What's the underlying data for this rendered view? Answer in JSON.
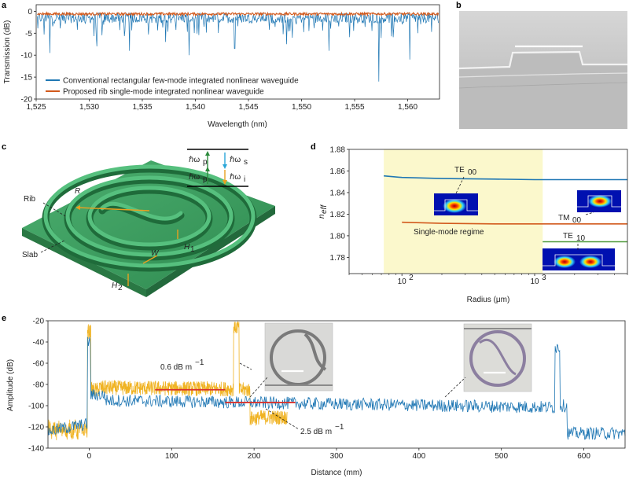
{
  "panels": {
    "a": "a",
    "b": "b",
    "c": "c",
    "d": "d",
    "e": "e"
  },
  "colors": {
    "blue": "#1f77b4",
    "orange": "#d2591c",
    "yellow_trace": "#f0b323",
    "green_curve": "#4f9a3a",
    "red_marker": "#d8322d",
    "highlight": "#fbf8cc",
    "slab": "#3a9a5c"
  },
  "chart_data": [
    {
      "id": "a",
      "type": "line",
      "xlabel": "Wavelength (nm)",
      "ylabel": "Transmission (dB)",
      "xlim": [
        1525,
        1563
      ],
      "ylim": [
        -20,
        1.5
      ],
      "xticks": [
        "1,525",
        "1,530",
        "1,535",
        "1,540",
        "1,545",
        "1,550",
        "1,555",
        "1,560"
      ],
      "xtick_values": [
        1525,
        1530,
        1535,
        1540,
        1545,
        1550,
        1555,
        1560
      ],
      "yticks": [
        "0",
        "-5",
        "-10",
        "-15",
        "-20"
      ],
      "ytick_values": [
        0,
        -5,
        -10,
        -15,
        -20
      ],
      "series": [
        {
          "name": "Conventional rectangular few-mode integrated nonlinear waveguide",
          "color": "#1f77b4",
          "baseline": -1.5,
          "noise": 1.2,
          "dips": [
            [
              1526.3,
              -9.5
            ],
            [
              1530.7,
              -8
            ],
            [
              1533.8,
              -9
            ],
            [
              1537.2,
              -7
            ],
            [
              1539.4,
              -10
            ],
            [
              1543.7,
              -8.5
            ],
            [
              1548.6,
              -7.5
            ],
            [
              1552.6,
              -9
            ],
            [
              1557.3,
              -16
            ],
            [
              1560.2,
              -11
            ]
          ]
        },
        {
          "name": "Proposed rib single-mode integrated nonlinear waveguide",
          "color": "#d2591c",
          "baseline": -0.6,
          "noise": 0.3,
          "dips": []
        }
      ]
    },
    {
      "id": "d",
      "type": "line",
      "xlabel": "Radius (μm)",
      "ylabel": "n",
      "ylabel_sub": "eff",
      "xscale": "log",
      "xlim": [
        40,
        5000
      ],
      "ylim": [
        1.765,
        1.88
      ],
      "xticks": [
        "10",
        "10"
      ],
      "xtick_sup": [
        "2",
        "3"
      ],
      "xtick_values": [
        100,
        1000
      ],
      "yticks": [
        "1.88",
        "1.86",
        "1.84",
        "1.82",
        "1.80",
        "1.78"
      ],
      "ytick_values": [
        1.88,
        1.86,
        1.84,
        1.82,
        1.8,
        1.78
      ],
      "region": {
        "label": "Single-mode regime",
        "from": 73,
        "to": 1150
      },
      "series": [
        {
          "name": "TE",
          "sub": "00",
          "color": "#1f77b4",
          "x": [
            73,
            100,
            200,
            500,
            1000,
            2000,
            5000
          ],
          "y": [
            1.8555,
            1.854,
            1.853,
            1.8525,
            1.852,
            1.852,
            1.852
          ]
        },
        {
          "name": "TM",
          "sub": "00",
          "color": "#d2591c",
          "x": [
            100,
            200,
            500,
            1000,
            2000,
            5000
          ],
          "y": [
            1.8125,
            1.8115,
            1.811,
            1.811,
            1.811,
            1.811
          ]
        },
        {
          "name": "TE",
          "sub": "10",
          "color": "#4f9a3a",
          "x": [
            1150,
            2000,
            5000
          ],
          "y": [
            1.7945,
            1.7945,
            1.7945
          ]
        }
      ]
    },
    {
      "id": "e",
      "type": "line",
      "xlabel": "Distance (mm)",
      "ylabel": "Amplitude (dB)",
      "xlim": [
        -50,
        650
      ],
      "ylim": [
        -140,
        -20
      ],
      "xticks": [
        "0",
        "100",
        "200",
        "300",
        "400",
        "500",
        "600"
      ],
      "xtick_values": [
        0,
        100,
        200,
        300,
        400,
        500,
        600
      ],
      "yticks": [
        "-20",
        "-40",
        "-60",
        "-80",
        "-100",
        "-120",
        "-140"
      ],
      "ytick_values": [
        -20,
        -40,
        -60,
        -80,
        -100,
        -120,
        -140
      ],
      "annotations": [
        {
          "text": "0.6 dB m",
          "sup": "−1",
          "from": 80,
          "to": 165,
          "level": -85
        },
        {
          "text": "2.5 dB m",
          "sup": "−1",
          "from": 165,
          "to": 250,
          "level": -97
        }
      ],
      "series": [
        {
          "name": "ring-short",
          "color": "#f0b323",
          "x_end": 240
        },
        {
          "name": "ring-long",
          "color": "#1f77b4",
          "x_end": 650
        }
      ]
    }
  ],
  "diagram_c": {
    "labels": {
      "rib": "Rib",
      "slab": "Slab",
      "r": "R",
      "w": "W",
      "h1": "H",
      "h1_sub": "1",
      "h2": "H",
      "h2_sub": "2"
    },
    "levels": {
      "hbar": "ℏω",
      "p": "p",
      "s": "s",
      "i": "i"
    }
  }
}
